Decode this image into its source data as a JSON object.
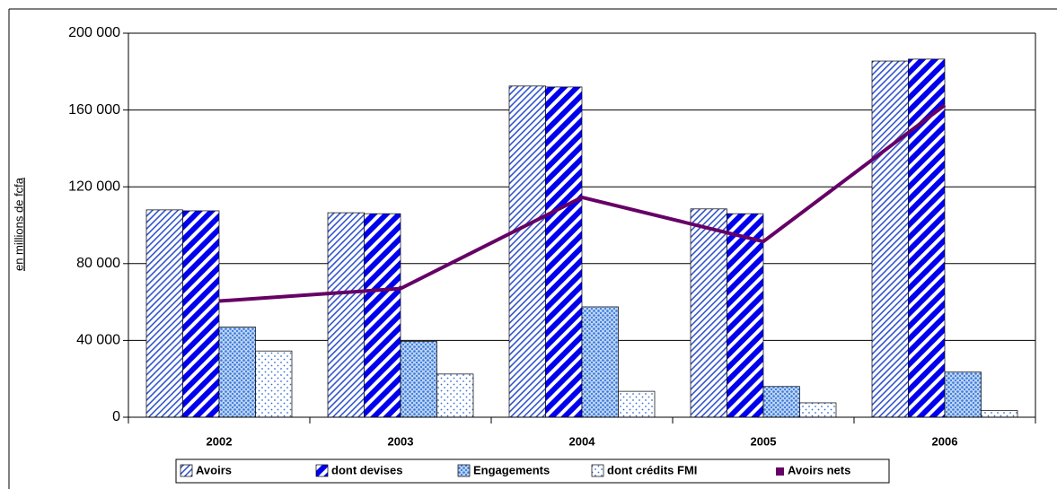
{
  "chart_data": {
    "type": "bar",
    "y_label": "en millions de fcfa",
    "categories": [
      "2002",
      "2003",
      "2004",
      "2005",
      "2006"
    ],
    "series": [
      {
        "name": "Avoirs",
        "color": "#3355cc",
        "values": [
          108000,
          106500,
          172500,
          108500,
          185500
        ]
      },
      {
        "name": "dont devises",
        "color": "#0000ee",
        "values": [
          107500,
          106000,
          172000,
          106000,
          186500
        ]
      },
      {
        "name": "Engagements",
        "color": "#3a7ad8",
        "values": [
          47000,
          39500,
          57500,
          16000,
          23500
        ]
      },
      {
        "name": "dont crédits FMI",
        "color": "#3a6fd0",
        "values": [
          34500,
          22500,
          13500,
          7500,
          3500
        ]
      },
      {
        "name": "Avoirs nets",
        "color": "#660066",
        "type": "line",
        "values": [
          60500,
          67000,
          114500,
          91500,
          162500
        ]
      }
    ],
    "ylim": [
      0,
      200000
    ],
    "yticks": [
      0,
      {
        "value": 40000,
        "label": "40 000"
      },
      {
        "value": 80000,
        "label": "80 000"
      },
      {
        "value": 120000,
        "label": "120 000"
      },
      {
        "value": 160000,
        "label": "160 000"
      },
      {
        "value": 200000,
        "label": "200 000"
      }
    ],
    "grid": true,
    "legend": "bottom"
  }
}
